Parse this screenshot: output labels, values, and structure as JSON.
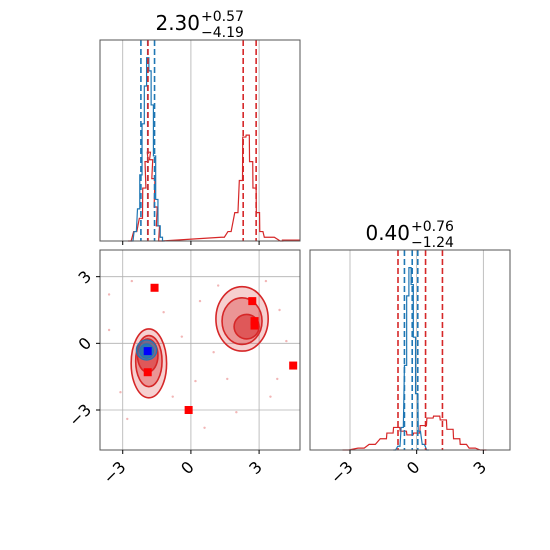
{
  "chart_data": {
    "type": "corner",
    "axis_ticks": [
      -3,
      0,
      3
    ],
    "tick_labels": [
      "−3",
      "0",
      "3"
    ],
    "grid": true,
    "colors": {
      "red": "#d62728",
      "blue": "#1f77b4",
      "marker_blue": "#0000ff",
      "marker_red": "#ff0000",
      "grid": "#b0b0b0"
    },
    "top_panel": {
      "title_value": "2.30",
      "title_plus": "+0.57",
      "title_minus": "−4.19",
      "xlim": [
        -4.0,
        4.8
      ],
      "red_quantiles": [
        -1.89,
        2.3,
        2.87
      ],
      "blue_quantiles": [
        -2.2,
        -1.9,
        -1.6
      ],
      "red_hist": [
        {
          "x": -2.7,
          "h": 0.0
        },
        {
          "x": -2.45,
          "h": 0.05
        },
        {
          "x": -2.2,
          "h": 0.12
        },
        {
          "x": -2.05,
          "h": 0.28
        },
        {
          "x": -1.95,
          "h": 0.42
        },
        {
          "x": -1.85,
          "h": 0.47
        },
        {
          "x": -1.75,
          "h": 0.43
        },
        {
          "x": -1.65,
          "h": 0.33
        },
        {
          "x": -1.55,
          "h": 0.18
        },
        {
          "x": -1.45,
          "h": 0.08
        },
        {
          "x": -1.35,
          "h": 0.0
        },
        {
          "x": 1.4,
          "h": 0.02
        },
        {
          "x": 1.7,
          "h": 0.05
        },
        {
          "x": 2.0,
          "h": 0.15
        },
        {
          "x": 2.2,
          "h": 0.32
        },
        {
          "x": 2.35,
          "h": 0.55
        },
        {
          "x": 2.5,
          "h": 0.56
        },
        {
          "x": 2.65,
          "h": 0.42
        },
        {
          "x": 2.8,
          "h": 0.28
        },
        {
          "x": 2.95,
          "h": 0.15
        },
        {
          "x": 3.1,
          "h": 0.05
        },
        {
          "x": 3.3,
          "h": 0.02
        },
        {
          "x": 3.6,
          "h": 0.02
        },
        {
          "x": 4.0,
          "h": 0.0
        }
      ],
      "blue_hist": [
        {
          "x": -2.6,
          "h": 0.0
        },
        {
          "x": -2.45,
          "h": 0.05
        },
        {
          "x": -2.3,
          "h": 0.17
        },
        {
          "x": -2.2,
          "h": 0.35
        },
        {
          "x": -2.1,
          "h": 0.62
        },
        {
          "x": -2.0,
          "h": 0.82
        },
        {
          "x": -1.9,
          "h": 0.97
        },
        {
          "x": -1.8,
          "h": 0.9
        },
        {
          "x": -1.7,
          "h": 0.72
        },
        {
          "x": -1.6,
          "h": 0.45
        },
        {
          "x": -1.5,
          "h": 0.22
        },
        {
          "x": -1.4,
          "h": 0.08
        },
        {
          "x": -1.3,
          "h": 0.02
        },
        {
          "x": -1.2,
          "h": 0.0
        }
      ]
    },
    "right_panel": {
      "title_value": "0.40",
      "title_plus": "+0.76",
      "title_minus": "−1.24",
      "xlim": [
        -4.8,
        4.2
      ],
      "red_quantiles": [
        -0.84,
        0.4,
        1.16
      ],
      "blue_quantiles": [
        -0.55,
        -0.2,
        0.05
      ],
      "red_hist": [
        {
          "x": -3.2,
          "h": 0.0
        },
        {
          "x": -2.5,
          "h": 0.01
        },
        {
          "x": -2.0,
          "h": 0.03
        },
        {
          "x": -1.5,
          "h": 0.06
        },
        {
          "x": -1.2,
          "h": 0.09
        },
        {
          "x": -0.9,
          "h": 0.12
        },
        {
          "x": -0.6,
          "h": 0.1
        },
        {
          "x": -0.3,
          "h": 0.08
        },
        {
          "x": 0.0,
          "h": 0.09
        },
        {
          "x": 0.3,
          "h": 0.13
        },
        {
          "x": 0.6,
          "h": 0.17
        },
        {
          "x": 0.9,
          "h": 0.18
        },
        {
          "x": 1.2,
          "h": 0.16
        },
        {
          "x": 1.5,
          "h": 0.11
        },
        {
          "x": 1.8,
          "h": 0.06
        },
        {
          "x": 2.1,
          "h": 0.03
        },
        {
          "x": 2.5,
          "h": 0.01
        },
        {
          "x": 3.0,
          "h": 0.0
        }
      ],
      "blue_hist": [
        {
          "x": -1.0,
          "h": 0.0
        },
        {
          "x": -0.8,
          "h": 0.02
        },
        {
          "x": -0.65,
          "h": 0.12
        },
        {
          "x": -0.5,
          "h": 0.45
        },
        {
          "x": -0.4,
          "h": 0.82
        },
        {
          "x": -0.3,
          "h": 0.97
        },
        {
          "x": -0.2,
          "h": 0.88
        },
        {
          "x": -0.1,
          "h": 0.6
        },
        {
          "x": 0.0,
          "h": 0.3
        },
        {
          "x": 0.12,
          "h": 0.1
        },
        {
          "x": 0.3,
          "h": 0.03
        },
        {
          "x": 0.5,
          "h": 0.0
        }
      ]
    },
    "joint_panel": {
      "xlim": [
        -4.0,
        4.8
      ],
      "ylim": [
        -4.8,
        4.2
      ],
      "red_markers": [
        {
          "x": -1.6,
          "y": 2.5
        },
        {
          "x": 2.7,
          "y": 1.9
        },
        {
          "x": 2.8,
          "y": 1.0
        },
        {
          "x": 2.8,
          "y": 0.8
        },
        {
          "x": 4.5,
          "y": -1.0
        },
        {
          "x": -1.9,
          "y": -1.3
        },
        {
          "x": -0.1,
          "y": -3.0
        }
      ],
      "blue_markers": [
        {
          "x": -1.9,
          "y": -0.35
        }
      ],
      "red_contours": [
        {
          "cx": -1.85,
          "cy": -0.9,
          "rx": 0.78,
          "ry": 1.55
        },
        {
          "cx": -1.85,
          "cy": -0.8,
          "rx": 0.58,
          "ry": 1.15
        },
        {
          "cx": -1.9,
          "cy": -0.55,
          "rx": 0.45,
          "ry": 0.75
        },
        {
          "cx": 2.25,
          "cy": 1.1,
          "rx": 1.15,
          "ry": 1.45
        },
        {
          "cx": 2.25,
          "cy": 1.0,
          "rx": 0.88,
          "ry": 1.05
        },
        {
          "cx": 2.45,
          "cy": 0.75,
          "rx": 0.55,
          "ry": 0.55
        }
      ],
      "blue_contours": [
        {
          "cx": -1.95,
          "cy": -0.3,
          "rx": 0.45,
          "ry": 0.45
        },
        {
          "cx": -1.95,
          "cy": -0.35,
          "rx": 0.3,
          "ry": 0.32
        }
      ],
      "scatter_points": [
        {
          "x": -3.6,
          "y": 2.2
        },
        {
          "x": -2.6,
          "y": 2.8
        },
        {
          "x": -1.2,
          "y": 1.4
        },
        {
          "x": 0.4,
          "y": 1.9
        },
        {
          "x": 1.2,
          "y": 2.6
        },
        {
          "x": 3.3,
          "y": 2.8
        },
        {
          "x": 3.9,
          "y": 1.5
        },
        {
          "x": 4.2,
          "y": 0.1
        },
        {
          "x": 3.5,
          "y": -2.4
        },
        {
          "x": 1.6,
          "y": -1.6
        },
        {
          "x": 0.2,
          "y": -1.7
        },
        {
          "x": -0.8,
          "y": -2.4
        },
        {
          "x": -3.1,
          "y": -2.2
        },
        {
          "x": -3.6,
          "y": 0.6
        },
        {
          "x": -0.4,
          "y": 0.3
        },
        {
          "x": 1.0,
          "y": -0.4
        },
        {
          "x": -2.8,
          "y": -3.4
        },
        {
          "x": 0.6,
          "y": -3.8
        },
        {
          "x": 2.0,
          "y": -3.1
        },
        {
          "x": 3.8,
          "y": -1.6
        }
      ]
    }
  }
}
